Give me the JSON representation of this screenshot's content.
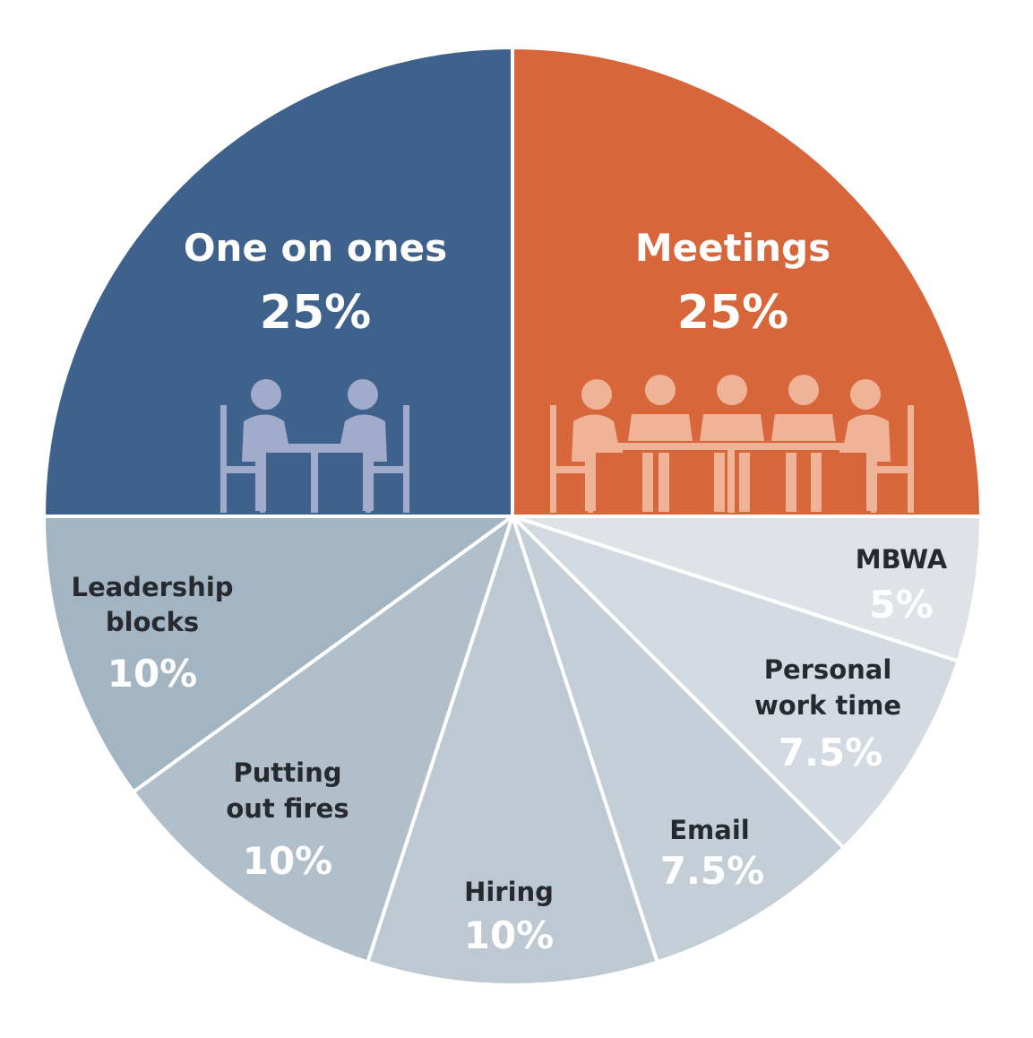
{
  "chart_data": {
    "type": "pie",
    "title": "",
    "start_angle": "top",
    "direction": "clockwise",
    "slices": [
      {
        "label": "Meetings",
        "value": 25,
        "pct_label": "25%",
        "color": "#d7673b",
        "icon": "meeting-table-icon"
      },
      {
        "label": "MBWA",
        "value": 5,
        "pct_label": "5%",
        "color": "#dfe3e7"
      },
      {
        "label": "Personal work time",
        "label_lines": [
          "Personal",
          "work time"
        ],
        "value": 7.5,
        "pct_label": "7.5%",
        "color": "#d3dae1"
      },
      {
        "label": "Email",
        "value": 7.5,
        "pct_label": "7.5%",
        "color": "#c4ced7"
      },
      {
        "label": "Hiring",
        "value": 10,
        "pct_label": "10%",
        "color": "#bcc8d2"
      },
      {
        "label": "Putting out fires",
        "label_lines": [
          "Putting",
          "out fires"
        ],
        "value": 10,
        "pct_label": "10%",
        "color": "#b1bfcb"
      },
      {
        "label": "Leadership blocks",
        "label_lines": [
          "Leadership",
          "blocks"
        ],
        "value": 10,
        "pct_label": "10%",
        "color": "#a3b4c2"
      },
      {
        "label": "One on ones",
        "value": 25,
        "pct_label": "25%",
        "color": "#3e628c",
        "icon": "one-on-one-icon"
      }
    ]
  }
}
